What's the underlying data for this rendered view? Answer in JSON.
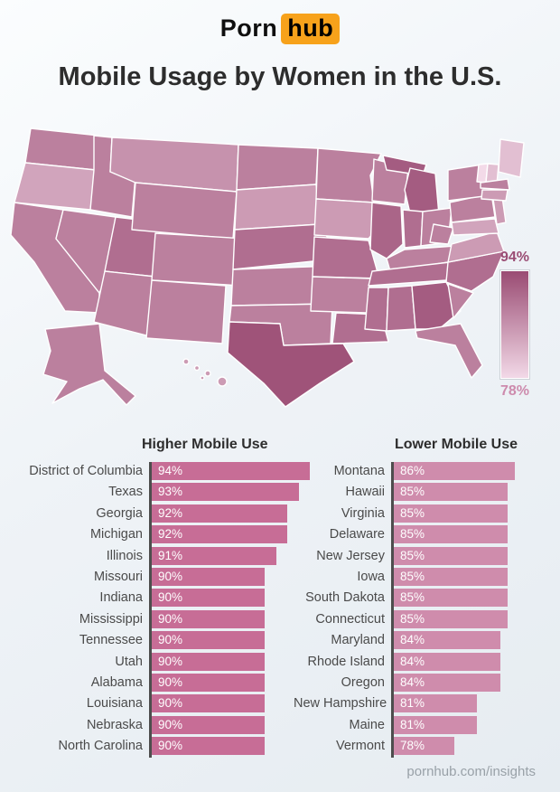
{
  "logo": {
    "part1": "Porn",
    "part2": "hub",
    "accent_color": "#f7a21b"
  },
  "title": "Mobile Usage by Women in the U.S.",
  "map": {
    "legend_max": "94%",
    "legend_min": "78%",
    "color_max": "#994a72",
    "color_min": "#f3dae8",
    "scale_min_value": 78,
    "scale_max_value": 94
  },
  "chart_data": [
    {
      "type": "bar",
      "title": "Higher Mobile Use",
      "unit": "%",
      "bar_color": "#c76d96",
      "categories": [
        "District of Columbia",
        "Texas",
        "Georgia",
        "Michigan",
        "Illinois",
        "Missouri",
        "Indiana",
        "Mississippi",
        "Tennessee",
        "Utah",
        "Alabama",
        "Louisiana",
        "Nebraska",
        "North Carolina"
      ],
      "values": [
        94,
        93,
        92,
        92,
        91,
        90,
        90,
        90,
        90,
        90,
        90,
        90,
        90,
        90
      ]
    },
    {
      "type": "bar",
      "title": "Lower Mobile Use",
      "unit": "%",
      "bar_color": "#cf8cac",
      "categories": [
        "Montana",
        "Hawaii",
        "Virginia",
        "Delaware",
        "New Jersey",
        "Iowa",
        "South Dakota",
        "Connecticut",
        "Maryland",
        "Rhode Island",
        "Oregon",
        "New Hampshire",
        "Maine",
        "Vermont"
      ],
      "values": [
        86,
        85,
        85,
        85,
        85,
        85,
        85,
        85,
        84,
        84,
        84,
        81,
        81,
        78
      ]
    }
  ],
  "footer": "pornhub.com/insights"
}
